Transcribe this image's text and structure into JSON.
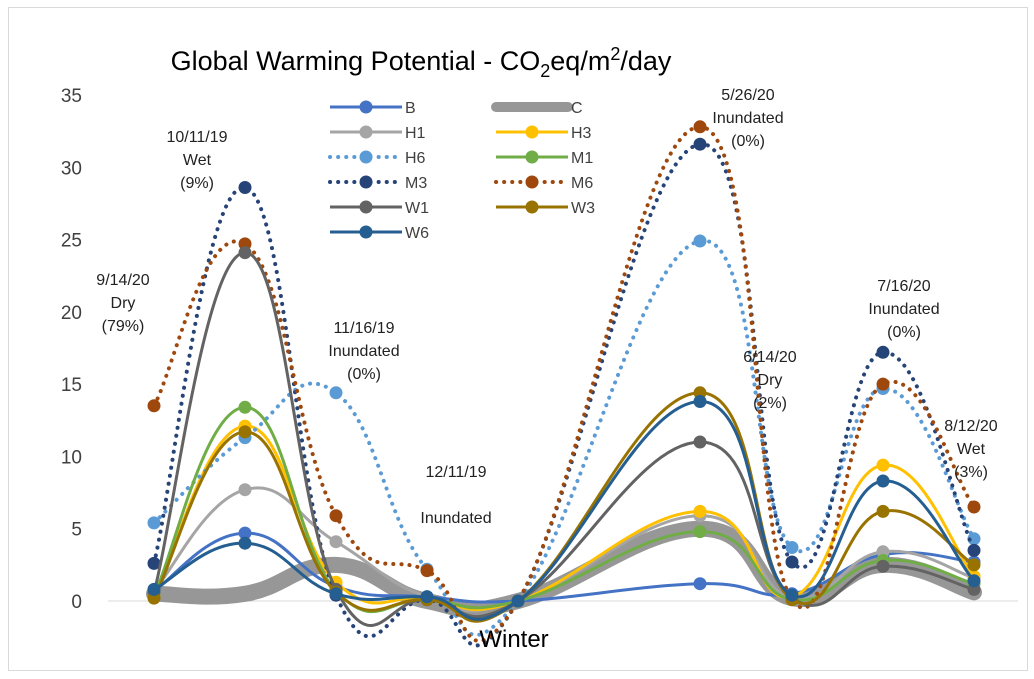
{
  "chart_data": {
    "type": "line",
    "title": "Global Warming Potential - CO₂eq/m²/day",
    "xlabel": "Winter",
    "ylabel": "",
    "ylim": [
      0,
      35
    ],
    "yticks": [
      0,
      5,
      10,
      15,
      20,
      25,
      30,
      35
    ],
    "grid": false,
    "legend_position": "top-center",
    "x": [
      1,
      2,
      3,
      4,
      5,
      6,
      7,
      8,
      9
    ],
    "series": [
      {
        "name": "B",
        "color": "#4472c4",
        "style": "solid",
        "values": [
          0.7,
          4.7,
          1.0,
          0.3,
          0,
          1.2,
          0.5,
          3.2,
          2.7
        ]
      },
      {
        "name": "C",
        "color": "#8c8c8c",
        "style": "thick",
        "values": [
          0.5,
          0.5,
          2.5,
          0,
          0,
          5.0,
          0.2,
          2.5,
          0.6
        ]
      },
      {
        "name": "H1",
        "color": "#a5a5a5",
        "style": "solid",
        "values": [
          0.7,
          7.7,
          4.1,
          0.3,
          0,
          5.9,
          0.2,
          3.4,
          1.6
        ]
      },
      {
        "name": "H3",
        "color": "#ffc000",
        "style": "solid",
        "values": [
          0.3,
          12.1,
          1.3,
          0.2,
          0,
          6.2,
          0.3,
          9.4,
          1.7
        ]
      },
      {
        "name": "H6",
        "color": "#5b9bd5",
        "style": "dotted",
        "values": [
          5.4,
          11.3,
          14.4,
          2.2,
          0,
          24.9,
          3.7,
          14.7,
          4.3
        ]
      },
      {
        "name": "M1",
        "color": "#70ad47",
        "style": "solid",
        "values": [
          0.4,
          13.4,
          0.7,
          0.1,
          0,
          4.8,
          0.1,
          2.8,
          1.2
        ]
      },
      {
        "name": "M3",
        "color": "#264478",
        "style": "dotted",
        "values": [
          2.6,
          28.6,
          0.4,
          0.1,
          0,
          31.6,
          2.7,
          17.2,
          3.5
        ]
      },
      {
        "name": "M6",
        "color": "#9e480e",
        "style": "dotted",
        "values": [
          13.5,
          24.7,
          5.9,
          2.1,
          0,
          32.8,
          0.1,
          15.0,
          6.5
        ]
      },
      {
        "name": "W1",
        "color": "#636363",
        "style": "solid",
        "values": [
          0.6,
          24.1,
          0.8,
          0.1,
          0,
          11.0,
          0.2,
          2.4,
          0.8
        ]
      },
      {
        "name": "W3",
        "color": "#997300",
        "style": "solid",
        "values": [
          0.2,
          11.7,
          0.6,
          0.1,
          0,
          14.4,
          0.1,
          6.2,
          2.5
        ]
      },
      {
        "name": "W6",
        "color": "#255e91",
        "style": "solid",
        "values": [
          0.8,
          4.0,
          0.5,
          0.3,
          0,
          13.8,
          0.4,
          8.3,
          1.4
        ]
      }
    ],
    "annotations": [
      {
        "lines": [
          "9/14/20",
          "Dry",
          "(79%)"
        ]
      },
      {
        "lines": [
          "10/11/19",
          "Wet",
          "(9%)"
        ]
      },
      {
        "lines": [
          "11/16/19",
          "Inundated",
          "(0%)"
        ]
      },
      {
        "lines": [
          "12/11/19",
          "",
          "Inundated"
        ]
      },
      {
        "lines": [
          "5/26/20",
          "Inundated",
          "(0%)"
        ]
      },
      {
        "lines": [
          "6/14/20",
          "Dry",
          "(2%)"
        ]
      },
      {
        "lines": [
          "7/16/20",
          "Inundated",
          "(0%)"
        ]
      },
      {
        "lines": [
          "8/12/20",
          "Wet",
          "(3%)"
        ]
      }
    ]
  }
}
